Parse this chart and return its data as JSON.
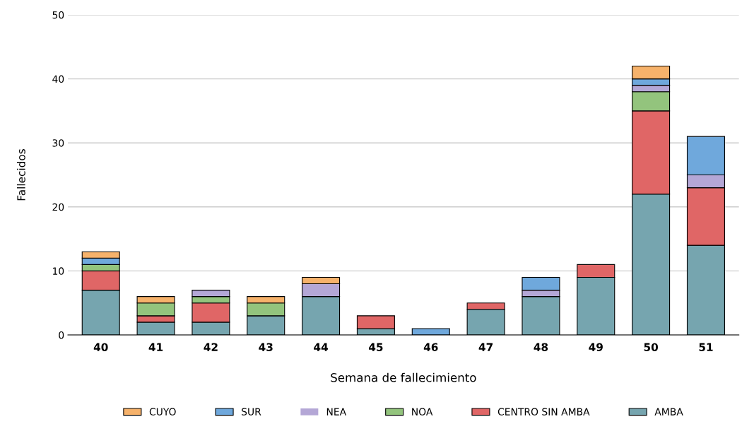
{
  "chart_data": {
    "type": "bar",
    "stacked": true,
    "xlabel": "Semana de fallecimiento",
    "ylabel": "Fallecidos",
    "categories": [
      "40",
      "41",
      "42",
      "43",
      "44",
      "45",
      "46",
      "47",
      "48",
      "49",
      "50",
      "51"
    ],
    "ylim": [
      0,
      50
    ],
    "yticks": [
      0,
      10,
      20,
      30,
      40,
      50
    ],
    "grid": "y",
    "legend": "bottom",
    "series": [
      {
        "name": "AMBA",
        "color": "#76a5af",
        "values": [
          7,
          2,
          2,
          3,
          6,
          1,
          0,
          4,
          6,
          9,
          22,
          14
        ]
      },
      {
        "name": "CENTRO SIN AMBA",
        "color": "#e06666",
        "values": [
          3,
          1,
          3,
          0,
          0,
          2,
          0,
          1,
          0,
          2,
          13,
          9
        ]
      },
      {
        "name": "NOA",
        "color": "#93c47d",
        "values": [
          1,
          2,
          1,
          2,
          0,
          0,
          0,
          0,
          0,
          0,
          3,
          0
        ]
      },
      {
        "name": "NEA",
        "color": "#b4a7d6",
        "values": [
          0,
          0,
          1,
          0,
          2,
          0,
          0,
          0,
          1,
          0,
          1,
          2
        ]
      },
      {
        "name": "SUR",
        "color": "#6fa8dc",
        "values": [
          1,
          0,
          0,
          0,
          0,
          0,
          1,
          0,
          2,
          0,
          1,
          6
        ]
      },
      {
        "name": "CUYO",
        "color": "#f6b26b",
        "values": [
          1,
          1,
          0,
          1,
          1,
          0,
          0,
          0,
          0,
          0,
          2,
          0
        ]
      }
    ]
  }
}
